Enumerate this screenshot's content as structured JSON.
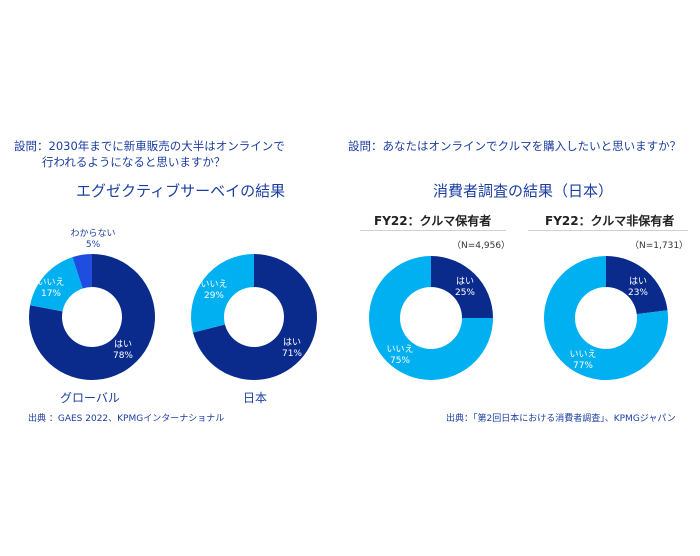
{
  "left": {
    "question_line1": "設問：2030年までに新車販売の大半はオンラインで",
    "question_line2": "行われるようになると思いますか？",
    "subtitle": "エグゼクティブサーベイの結果",
    "source": "出典 ：GAES 2022、KPMGインターナショナル"
  },
  "right": {
    "question": "設問：あなたはオンラインでクルマを購入したいと思いますか？",
    "subtitle": "消費者調査の結果（日本）",
    "group1": "FY22：クルマ保有者",
    "group1_n": "（N=4,956）",
    "group2": "FY22：クルマ非保有者",
    "group2_n": "（N=1,731）",
    "source": "出典：「第2回日本における消費者調査」、KPMGジャパン"
  },
  "colors": {
    "yes": "#0a2b8c",
    "no": "#00b0f0",
    "unknown": "#1f4de0",
    "text": "#1b3fa0"
  },
  "charts": {
    "global": {
      "caption": "グローバル",
      "yes_label": "はい",
      "yes_pct": "78%",
      "no_label": "いいえ",
      "no_pct": "17%",
      "unk_label": "わからない",
      "unk_pct": "5%"
    },
    "japan": {
      "caption": "日本",
      "yes_label": "はい",
      "yes_pct": "71%",
      "no_label": "いいえ",
      "no_pct": "29%"
    },
    "owners": {
      "yes_label": "はい",
      "yes_pct": "25%",
      "no_label": "いいえ",
      "no_pct": "75%"
    },
    "nonowners": {
      "yes_label": "はい",
      "yes_pct": "23%",
      "no_label": "いいえ",
      "no_pct": "77%"
    }
  },
  "chart_data": [
    {
      "type": "pie",
      "title": "エグゼクティブサーベイの結果 — グローバル",
      "categories": [
        "はい",
        "いいえ",
        "わからない"
      ],
      "values": [
        78,
        17,
        5
      ],
      "donut": true
    },
    {
      "type": "pie",
      "title": "エグゼクティブサーベイの結果 — 日本",
      "categories": [
        "はい",
        "いいえ"
      ],
      "values": [
        71,
        29
      ],
      "donut": true
    },
    {
      "type": "pie",
      "title": "消費者調査の結果（日本） — FY22：クルマ保有者 (N=4,956)",
      "categories": [
        "はい",
        "いいえ"
      ],
      "values": [
        25,
        75
      ],
      "donut": true
    },
    {
      "type": "pie",
      "title": "消費者調査の結果（日本） — FY22：クルマ非保有者 (N=1,731)",
      "categories": [
        "はい",
        "いいえ"
      ],
      "values": [
        23,
        77
      ],
      "donut": true
    }
  ]
}
